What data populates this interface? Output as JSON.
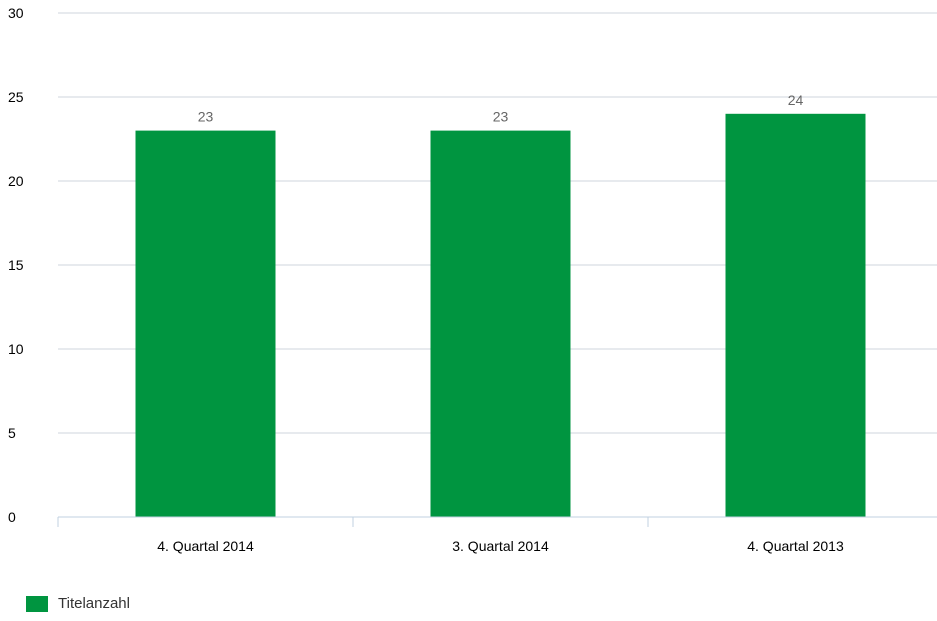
{
  "chart_data": {
    "type": "bar",
    "categories": [
      "4. Quartal 2014",
      "3. Quartal 2014",
      "4. Quartal 2013"
    ],
    "series": [
      {
        "name": "Titelanzahl",
        "values": [
          23,
          23,
          24
        ],
        "color": "#009540"
      }
    ],
    "data_labels": [
      "23",
      "23",
      "24"
    ],
    "yticks": [
      "0",
      "5",
      "10",
      "15",
      "20",
      "25",
      "30"
    ],
    "ylim": [
      0,
      30
    ],
    "grid": true,
    "legend_position": "bottom-left",
    "title": "",
    "xlabel": "",
    "ylabel": ""
  }
}
